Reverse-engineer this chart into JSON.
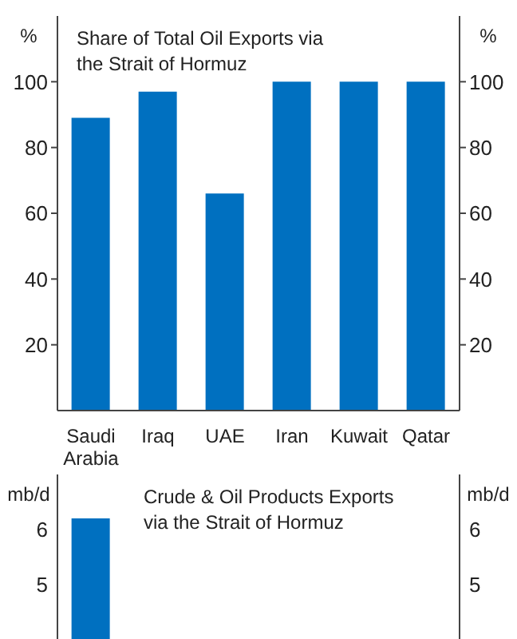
{
  "chart_data": [
    {
      "type": "bar",
      "title": "Share of Total Oil Exports via the Strait of Hormuz",
      "ylabel": "%",
      "y2label": "%",
      "categories": [
        "Saudi Arabia",
        "Iraq",
        "UAE",
        "Iran",
        "Kuwait",
        "Qatar"
      ],
      "values": [
        89,
        97,
        66,
        100,
        100,
        100
      ],
      "color": "#0070c0",
      "ylim": [
        0,
        120
      ],
      "yticks": [
        20,
        40,
        60,
        80,
        100
      ],
      "y2lim": [
        0,
        120
      ],
      "y2ticks": [
        20,
        40,
        60,
        80,
        100
      ]
    },
    {
      "type": "bar",
      "title": "Crude & Oil Products Exports via the Strait of Hormuz",
      "ylabel": "mb/d",
      "y2label": "mb/d",
      "categories": [
        null,
        null,
        null,
        null,
        null,
        null
      ],
      "values": [
        6.2,
        null,
        null,
        null,
        null,
        null
      ],
      "color": "#0070c0",
      "ylim": [
        4,
        7
      ],
      "yticks": [
        5,
        6
      ],
      "y2lim": [
        4,
        7
      ],
      "y2ticks": [
        5,
        6
      ],
      "tick_labels": "y"
    }
  ]
}
